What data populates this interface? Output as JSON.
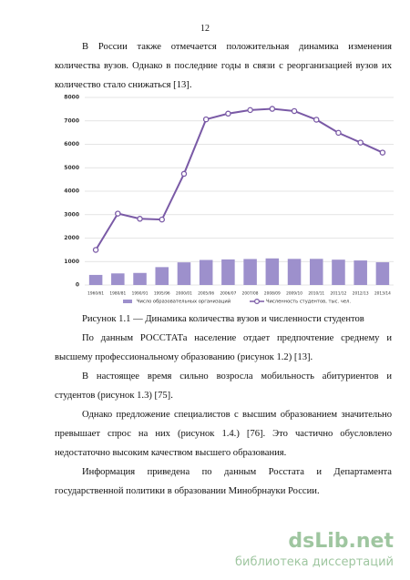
{
  "page_number": "12",
  "paragraphs_before": [
    "В России также отмечается положительная динамика изменения количества вузов. Однако в последние годы в связи с реорганизацией вузов их количество стало снижаться [13]."
  ],
  "chart_data": {
    "type": "bar",
    "categories": [
      "1960/61",
      "1980/81",
      "1990/91",
      "1995/96",
      "2000/01",
      "2005/06",
      "2006/07",
      "2007/08",
      "2008/09",
      "2009/10",
      "2010/11",
      "2011/12",
      "2012/13",
      "2013/14"
    ],
    "series": [
      {
        "name": "Число образовательных организаций",
        "type": "bar",
        "color": "#9d90cc",
        "values": [
          430,
          494,
          514,
          762,
          965,
          1068,
          1090,
          1108,
          1134,
          1114,
          1115,
          1080,
          1046,
          969
        ]
      },
      {
        "name": "Численность студентов, тыс. чел.",
        "type": "line",
        "color": "#7a5aa6",
        "values": [
          1496,
          3046,
          2824,
          2791,
          4741,
          7065,
          7310,
          7461,
          7513,
          7419,
          7050,
          6490,
          6075,
          5647
        ]
      }
    ],
    "ylim": [
      0,
      8000
    ],
    "yticks": [
      0,
      1000,
      2000,
      3000,
      4000,
      5000,
      6000,
      7000,
      8000
    ],
    "grid": true,
    "legend": "bottom"
  },
  "caption": "Рисунок 1.1 — Динамика количества вузов и численности студентов",
  "paragraphs_after": [
    "По данным РОССТАТа население отдает предпочтение среднему и высшему профессиональному образованию (рисунок 1.2) [13].",
    "В настоящее время сильно возросла мобильность абитуриентов и студентов (рисунок 1.3) [75].",
    "Однако предложение специалистов с высшим образованием значительно превышает спрос на них (рисунок 1.4.) [76]. Это частично обусловлено недостаточно высоким качеством высшего образования.",
    "Информация приведена по данным Росстата и Департамента государственной политики в образовании Минобрнауки России."
  ],
  "watermark": {
    "logo": "dsLib.net",
    "subtitle": "библиотека диссертаций"
  }
}
